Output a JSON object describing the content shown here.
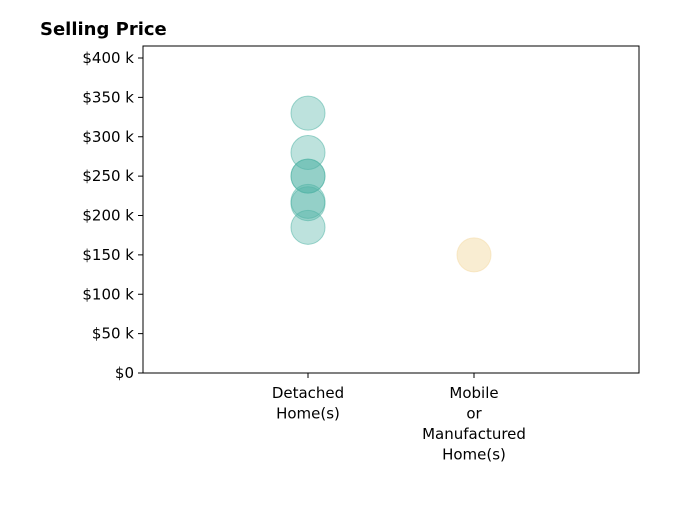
{
  "chart_data": {
    "type": "scatter",
    "title": "Selling Price",
    "xlabel": "",
    "ylabel": "",
    "categories": [
      "Detached\nHome(s)",
      "Mobile\nor\nManufactured\nHome(s)"
    ],
    "ylim": [
      0,
      400000
    ],
    "y_ticks": [
      {
        "value": 0,
        "label": "$0"
      },
      {
        "value": 50000,
        "label": "$50 k"
      },
      {
        "value": 100000,
        "label": "$100 k"
      },
      {
        "value": 150000,
        "label": "$150 k"
      },
      {
        "value": 200000,
        "label": "$200 k"
      },
      {
        "value": 250000,
        "label": "$250 k"
      },
      {
        "value": 300000,
        "label": "$300 k"
      },
      {
        "value": 350000,
        "label": "$350 k"
      },
      {
        "value": 400000,
        "label": "$400 k"
      }
    ],
    "series": [
      {
        "category": "Detached\nHome(s)",
        "color": "#52b4a6",
        "values": [
          330000,
          280000,
          250000,
          250000,
          218000,
          215000,
          185000
        ]
      },
      {
        "category": "Mobile\nor\nManufactured\nHome(s)",
        "color": "#f4dba6",
        "values": [
          150000
        ]
      }
    ],
    "grid": false,
    "legend": "none"
  }
}
